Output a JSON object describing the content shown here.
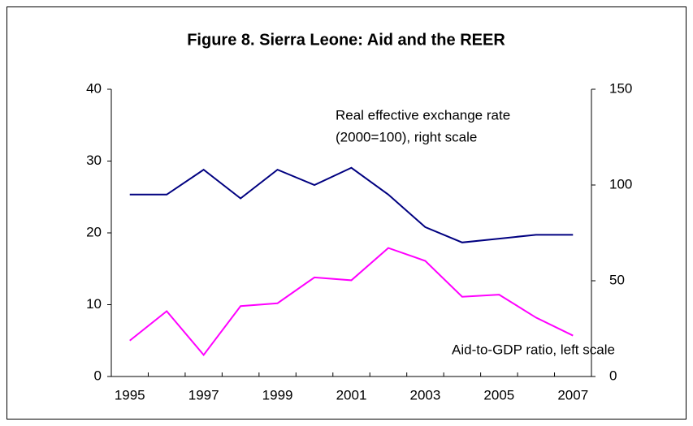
{
  "chart_data": {
    "type": "line",
    "title": "Figure 8. Sierra Leone: Aid and the REER",
    "categories": [
      "1995",
      null,
      "1997",
      null,
      "1999",
      null,
      "2001",
      null,
      "2003",
      null,
      "2005",
      null,
      "2007"
    ],
    "series": [
      {
        "name": "Real effective exchange rate (2000=100), right scale",
        "color": "#000080",
        "axis": "y2",
        "values": [
          95,
          95,
          108,
          93,
          108,
          100,
          109,
          95,
          78,
          70,
          72,
          74,
          74
        ]
      },
      {
        "name": "Aid-to-GDP ratio, left scale",
        "color": "#ff00ff",
        "values": [
          5,
          9.1,
          3,
          9.8,
          10.2,
          13.8,
          13.4,
          17.9,
          16.1,
          11.1,
          11.4,
          8.2,
          5.7
        ]
      }
    ],
    "annotations": [
      "Real effective exchange rate",
      "(2000=100), right scale",
      "Aid-to-GDP ratio, left scale"
    ],
    "ylim": [
      0,
      40
    ],
    "yticks": [
      0,
      10,
      20,
      30,
      40
    ],
    "y2lim": [
      0,
      150
    ],
    "y2ticks": [
      0,
      50,
      100,
      150
    ]
  }
}
